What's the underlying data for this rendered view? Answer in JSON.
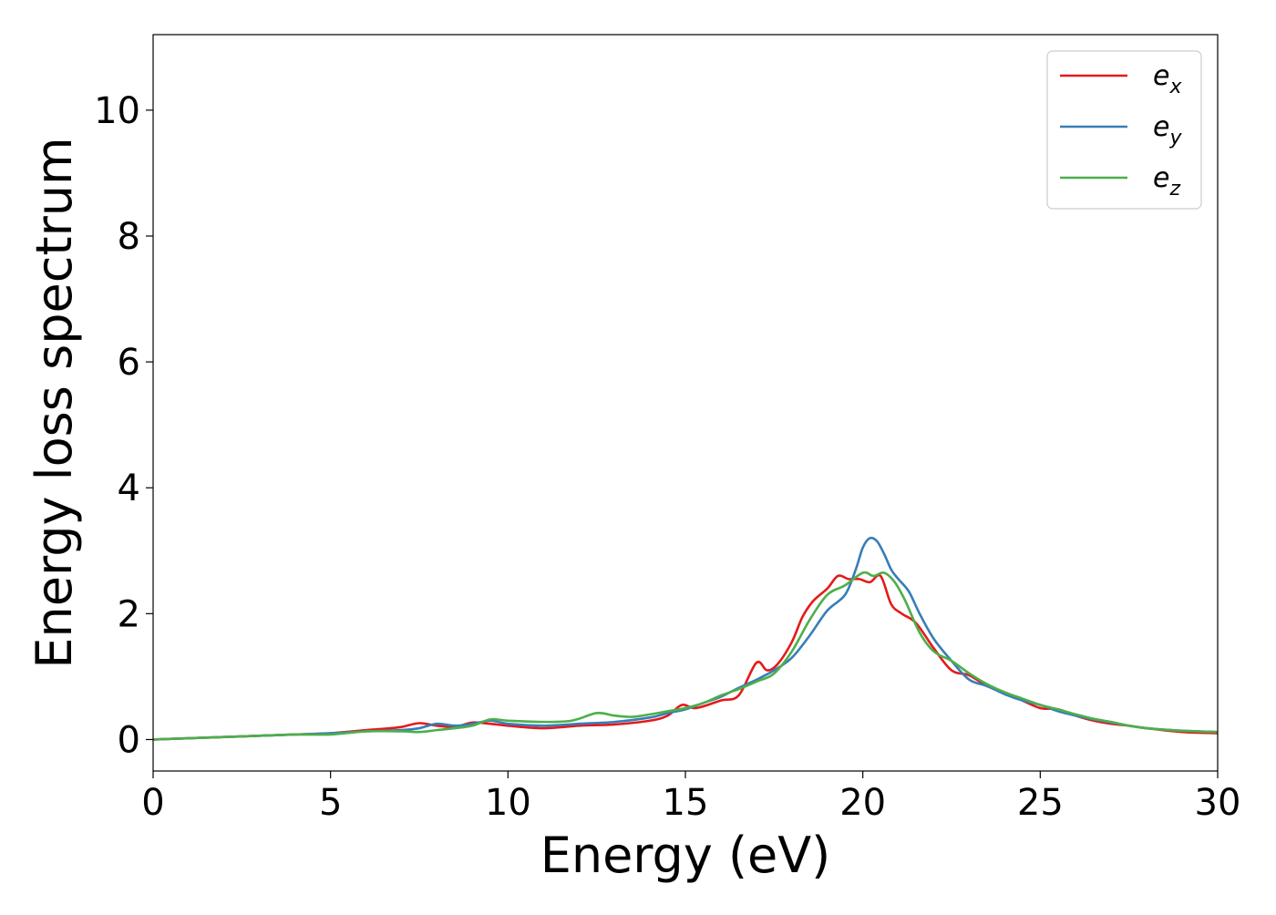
{
  "chart_data": {
    "type": "line",
    "xlabel": "Energy (eV)",
    "ylabel": "Energy loss spectrum",
    "xlim": [
      0,
      30
    ],
    "ylim": [
      -0.5,
      11.2
    ],
    "xticks": [
      0,
      5,
      10,
      15,
      20,
      25,
      30
    ],
    "yticks": [
      0,
      2,
      4,
      6,
      8,
      10
    ],
    "grid": false,
    "legend_position": "top-right",
    "series": [
      {
        "name": "e_x",
        "label_main": "e",
        "label_sub": "x",
        "color": "#e41a1c",
        "x": [
          0,
          1,
          2,
          3,
          4,
          5,
          6,
          6.5,
          7,
          7.5,
          8,
          8.5,
          9,
          9.5,
          10,
          11,
          12,
          13,
          14,
          14.5,
          14.9,
          15.3,
          16,
          16.5,
          17,
          17.3,
          17.6,
          18,
          18.3,
          18.6,
          19,
          19.3,
          19.6,
          19.9,
          20.2,
          20.5,
          20.8,
          21.1,
          21.5,
          22,
          22.5,
          23,
          23.5,
          24,
          24.5,
          25,
          25.5,
          26,
          26.5,
          27,
          27.5,
          28,
          29,
          30
        ],
        "y": [
          0.0,
          0.02,
          0.04,
          0.06,
          0.08,
          0.1,
          0.15,
          0.17,
          0.2,
          0.26,
          0.22,
          0.2,
          0.27,
          0.25,
          0.22,
          0.18,
          0.22,
          0.24,
          0.3,
          0.38,
          0.55,
          0.5,
          0.62,
          0.7,
          1.22,
          1.1,
          1.2,
          1.55,
          1.95,
          2.2,
          2.4,
          2.6,
          2.55,
          2.55,
          2.5,
          2.6,
          2.15,
          2.0,
          1.85,
          1.45,
          1.1,
          1.02,
          0.85,
          0.75,
          0.62,
          0.5,
          0.48,
          0.38,
          0.3,
          0.25,
          0.22,
          0.18,
          0.12,
          0.1
        ]
      },
      {
        "name": "e_y",
        "label_main": "e",
        "label_sub": "y",
        "color": "#377eb8",
        "x": [
          0,
          1,
          2,
          3,
          4,
          5,
          6,
          7,
          7.5,
          8,
          8.5,
          9,
          9.5,
          10,
          11,
          12,
          13,
          14,
          14.5,
          15,
          15.5,
          16,
          16.5,
          17,
          17.5,
          18,
          18.5,
          19,
          19.5,
          19.8,
          20,
          20.2,
          20.4,
          20.6,
          20.8,
          21,
          21.3,
          21.6,
          22,
          22.5,
          23,
          23.5,
          24,
          24.5,
          25,
          25.5,
          26,
          26.5,
          27,
          27.5,
          28,
          29,
          30
        ],
        "y": [
          0.0,
          0.02,
          0.04,
          0.06,
          0.08,
          0.1,
          0.13,
          0.15,
          0.18,
          0.25,
          0.22,
          0.25,
          0.3,
          0.25,
          0.22,
          0.25,
          0.28,
          0.35,
          0.42,
          0.48,
          0.58,
          0.68,
          0.82,
          0.95,
          1.1,
          1.3,
          1.65,
          2.05,
          2.3,
          2.7,
          3.05,
          3.2,
          3.15,
          2.95,
          2.7,
          2.55,
          2.35,
          2.0,
          1.6,
          1.25,
          0.95,
          0.85,
          0.72,
          0.62,
          0.55,
          0.45,
          0.38,
          0.32,
          0.27,
          0.22,
          0.18,
          0.14,
          0.12
        ]
      },
      {
        "name": "e_z",
        "label_main": "e",
        "label_sub": "z",
        "color": "#4daf4a",
        "x": [
          0,
          1,
          2,
          3,
          4,
          5,
          6,
          7,
          7.5,
          8,
          8.5,
          9,
          9.5,
          10,
          11,
          11.8,
          12.5,
          13,
          13.5,
          14,
          14.5,
          15,
          15.5,
          16,
          16.5,
          17,
          17.5,
          18,
          18.5,
          19,
          19.5,
          20,
          20.3,
          20.6,
          20.9,
          21.2,
          21.6,
          22,
          22.5,
          23,
          23.5,
          24,
          24.5,
          25,
          25.5,
          26,
          26.5,
          27,
          27.5,
          28,
          29,
          30
        ],
        "y": [
          0.0,
          0.02,
          0.04,
          0.06,
          0.08,
          0.08,
          0.13,
          0.13,
          0.12,
          0.15,
          0.18,
          0.22,
          0.32,
          0.3,
          0.28,
          0.3,
          0.42,
          0.38,
          0.36,
          0.4,
          0.45,
          0.5,
          0.58,
          0.7,
          0.8,
          0.92,
          1.05,
          1.4,
          1.9,
          2.3,
          2.45,
          2.65,
          2.6,
          2.65,
          2.5,
          2.2,
          1.7,
          1.4,
          1.25,
          1.05,
          0.88,
          0.75,
          0.65,
          0.55,
          0.48,
          0.4,
          0.33,
          0.28,
          0.22,
          0.18,
          0.14,
          0.12
        ]
      }
    ]
  }
}
